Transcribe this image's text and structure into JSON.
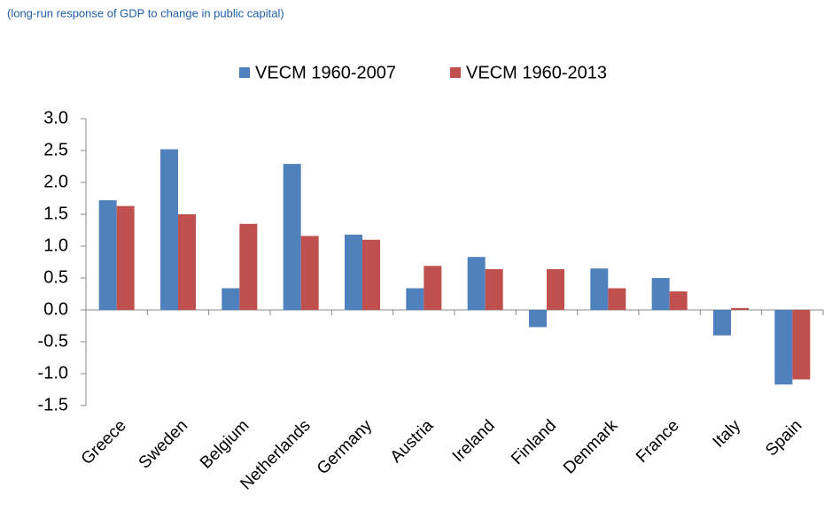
{
  "chart_data": {
    "type": "bar",
    "subtitle": "(long-run response of GDP to change in public capital)",
    "categories": [
      "Greece",
      "Sweden",
      "Belgium",
      "Netherlands",
      "Germany",
      "Austria",
      "Ireland",
      "Finland",
      "Denmark",
      "France",
      "Italy",
      "Spain"
    ],
    "series": [
      {
        "name": "VECM 1960-2007",
        "color": "#4f81bd",
        "values": [
          1.72,
          2.52,
          0.34,
          2.29,
          1.18,
          0.34,
          0.83,
          -0.27,
          0.65,
          0.5,
          -0.4,
          -1.17
        ]
      },
      {
        "name": "VECM 1960-2013",
        "color": "#c0504d",
        "values": [
          1.63,
          1.5,
          1.35,
          1.16,
          1.1,
          0.69,
          0.64,
          0.64,
          0.34,
          0.29,
          0.03,
          -1.09
        ]
      }
    ],
    "ylim": [
      -1.5,
      3
    ],
    "yticks": [
      {
        "value": 3,
        "label": "3.0"
      },
      2.5,
      {
        "value": 2,
        "label": "2.0"
      },
      1.5,
      {
        "value": 1,
        "label": "1.0"
      },
      0.5,
      {
        "value": 0,
        "label": "0.0"
      },
      -0.5,
      {
        "value": -1,
        "label": "-1.0"
      },
      -1.5
    ],
    "legend": "top",
    "grid": false
  }
}
